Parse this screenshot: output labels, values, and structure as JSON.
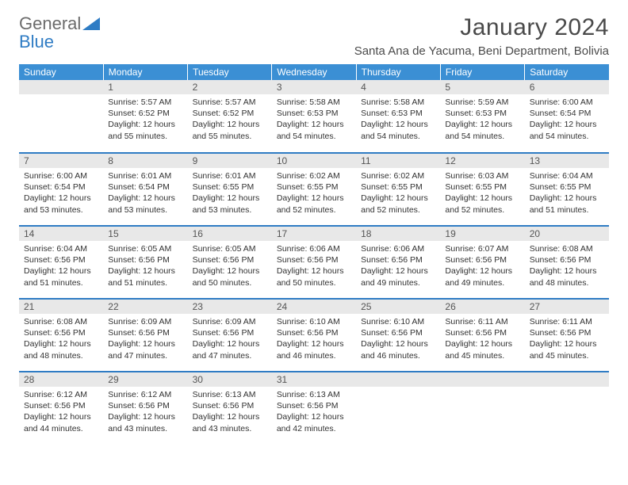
{
  "brand": {
    "word1": "General",
    "word2": "Blue"
  },
  "title": "January 2024",
  "location": "Santa Ana de Yacuma, Beni Department, Bolivia",
  "colors": {
    "header_bg": "#3b8fd4",
    "header_text": "#ffffff",
    "row_divider": "#2f7cc4",
    "daynum_bg": "#e8e8e8",
    "daynum_text": "#555555",
    "body_text": "#323232",
    "logo_gray": "#6b6b6b",
    "logo_blue": "#2f7cc4"
  },
  "weekdays": [
    "Sunday",
    "Monday",
    "Tuesday",
    "Wednesday",
    "Thursday",
    "Friday",
    "Saturday"
  ],
  "weeks": [
    [
      {
        "n": "",
        "sr": "",
        "ss": "",
        "dl": ""
      },
      {
        "n": "1",
        "sr": "5:57 AM",
        "ss": "6:52 PM",
        "dl": "12 hours and 55 minutes."
      },
      {
        "n": "2",
        "sr": "5:57 AM",
        "ss": "6:52 PM",
        "dl": "12 hours and 55 minutes."
      },
      {
        "n": "3",
        "sr": "5:58 AM",
        "ss": "6:53 PM",
        "dl": "12 hours and 54 minutes."
      },
      {
        "n": "4",
        "sr": "5:58 AM",
        "ss": "6:53 PM",
        "dl": "12 hours and 54 minutes."
      },
      {
        "n": "5",
        "sr": "5:59 AM",
        "ss": "6:53 PM",
        "dl": "12 hours and 54 minutes."
      },
      {
        "n": "6",
        "sr": "6:00 AM",
        "ss": "6:54 PM",
        "dl": "12 hours and 54 minutes."
      }
    ],
    [
      {
        "n": "7",
        "sr": "6:00 AM",
        "ss": "6:54 PM",
        "dl": "12 hours and 53 minutes."
      },
      {
        "n": "8",
        "sr": "6:01 AM",
        "ss": "6:54 PM",
        "dl": "12 hours and 53 minutes."
      },
      {
        "n": "9",
        "sr": "6:01 AM",
        "ss": "6:55 PM",
        "dl": "12 hours and 53 minutes."
      },
      {
        "n": "10",
        "sr": "6:02 AM",
        "ss": "6:55 PM",
        "dl": "12 hours and 52 minutes."
      },
      {
        "n": "11",
        "sr": "6:02 AM",
        "ss": "6:55 PM",
        "dl": "12 hours and 52 minutes."
      },
      {
        "n": "12",
        "sr": "6:03 AM",
        "ss": "6:55 PM",
        "dl": "12 hours and 52 minutes."
      },
      {
        "n": "13",
        "sr": "6:04 AM",
        "ss": "6:55 PM",
        "dl": "12 hours and 51 minutes."
      }
    ],
    [
      {
        "n": "14",
        "sr": "6:04 AM",
        "ss": "6:56 PM",
        "dl": "12 hours and 51 minutes."
      },
      {
        "n": "15",
        "sr": "6:05 AM",
        "ss": "6:56 PM",
        "dl": "12 hours and 51 minutes."
      },
      {
        "n": "16",
        "sr": "6:05 AM",
        "ss": "6:56 PM",
        "dl": "12 hours and 50 minutes."
      },
      {
        "n": "17",
        "sr": "6:06 AM",
        "ss": "6:56 PM",
        "dl": "12 hours and 50 minutes."
      },
      {
        "n": "18",
        "sr": "6:06 AM",
        "ss": "6:56 PM",
        "dl": "12 hours and 49 minutes."
      },
      {
        "n": "19",
        "sr": "6:07 AM",
        "ss": "6:56 PM",
        "dl": "12 hours and 49 minutes."
      },
      {
        "n": "20",
        "sr": "6:08 AM",
        "ss": "6:56 PM",
        "dl": "12 hours and 48 minutes."
      }
    ],
    [
      {
        "n": "21",
        "sr": "6:08 AM",
        "ss": "6:56 PM",
        "dl": "12 hours and 48 minutes."
      },
      {
        "n": "22",
        "sr": "6:09 AM",
        "ss": "6:56 PM",
        "dl": "12 hours and 47 minutes."
      },
      {
        "n": "23",
        "sr": "6:09 AM",
        "ss": "6:56 PM",
        "dl": "12 hours and 47 minutes."
      },
      {
        "n": "24",
        "sr": "6:10 AM",
        "ss": "6:56 PM",
        "dl": "12 hours and 46 minutes."
      },
      {
        "n": "25",
        "sr": "6:10 AM",
        "ss": "6:56 PM",
        "dl": "12 hours and 46 minutes."
      },
      {
        "n": "26",
        "sr": "6:11 AM",
        "ss": "6:56 PM",
        "dl": "12 hours and 45 minutes."
      },
      {
        "n": "27",
        "sr": "6:11 AM",
        "ss": "6:56 PM",
        "dl": "12 hours and 45 minutes."
      }
    ],
    [
      {
        "n": "28",
        "sr": "6:12 AM",
        "ss": "6:56 PM",
        "dl": "12 hours and 44 minutes."
      },
      {
        "n": "29",
        "sr": "6:12 AM",
        "ss": "6:56 PM",
        "dl": "12 hours and 43 minutes."
      },
      {
        "n": "30",
        "sr": "6:13 AM",
        "ss": "6:56 PM",
        "dl": "12 hours and 43 minutes."
      },
      {
        "n": "31",
        "sr": "6:13 AM",
        "ss": "6:56 PM",
        "dl": "12 hours and 42 minutes."
      },
      {
        "n": "",
        "sr": "",
        "ss": "",
        "dl": ""
      },
      {
        "n": "",
        "sr": "",
        "ss": "",
        "dl": ""
      },
      {
        "n": "",
        "sr": "",
        "ss": "",
        "dl": ""
      }
    ]
  ],
  "labels": {
    "sunrise": "Sunrise:",
    "sunset": "Sunset:",
    "daylight": "Daylight:"
  }
}
